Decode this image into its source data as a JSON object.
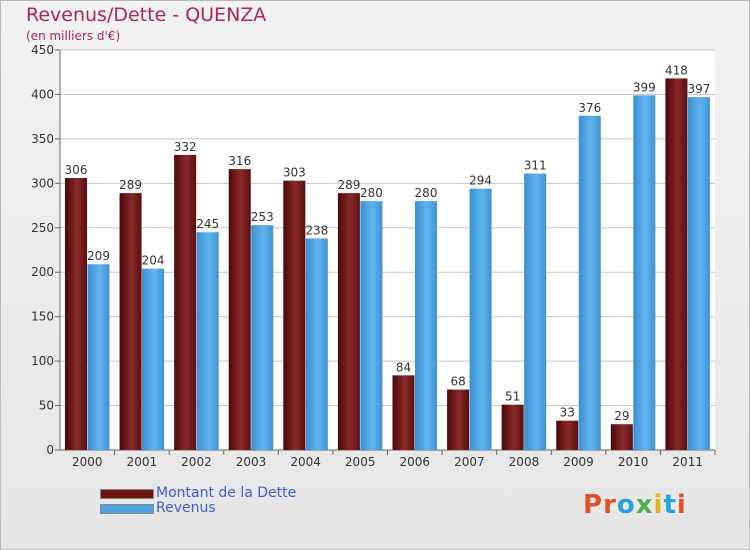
{
  "chart": {
    "title": "Revenus/Dette - QUENZA",
    "subtitle": "(en milliers d'€)"
  },
  "chart_data": {
    "type": "bar",
    "title": "Revenus/Dette - QUENZA",
    "subtitle": "(en milliers d'€)",
    "categories": [
      "2000",
      "2001",
      "2002",
      "2003",
      "2004",
      "2005",
      "2006",
      "2007",
      "2008",
      "2009",
      "2010",
      "2011"
    ],
    "series": [
      {
        "name": "Montant de la Dette",
        "color": "#7a1a1a",
        "values": [
          306,
          289,
          332,
          316,
          303,
          289,
          84,
          68,
          51,
          33,
          29,
          418
        ]
      },
      {
        "name": "Revenus",
        "color": "#4fa3e3",
        "values": [
          209,
          204,
          245,
          253,
          238,
          280,
          280,
          294,
          311,
          376,
          399,
          397
        ]
      }
    ],
    "ylim": [
      0,
      450
    ],
    "yticks": [
      0,
      50,
      100,
      150,
      200,
      250,
      300,
      350,
      400,
      450
    ],
    "grid": true,
    "legend": "bottom-left"
  },
  "logo": {
    "letters": [
      "P",
      "r",
      "o",
      "x",
      "i",
      "t",
      "i"
    ],
    "colors": [
      "#e0532a",
      "#e0532a",
      "#2aa0d8",
      "#4caf50",
      "#e6b31e",
      "#2aa0d8",
      "#e0532a"
    ]
  }
}
